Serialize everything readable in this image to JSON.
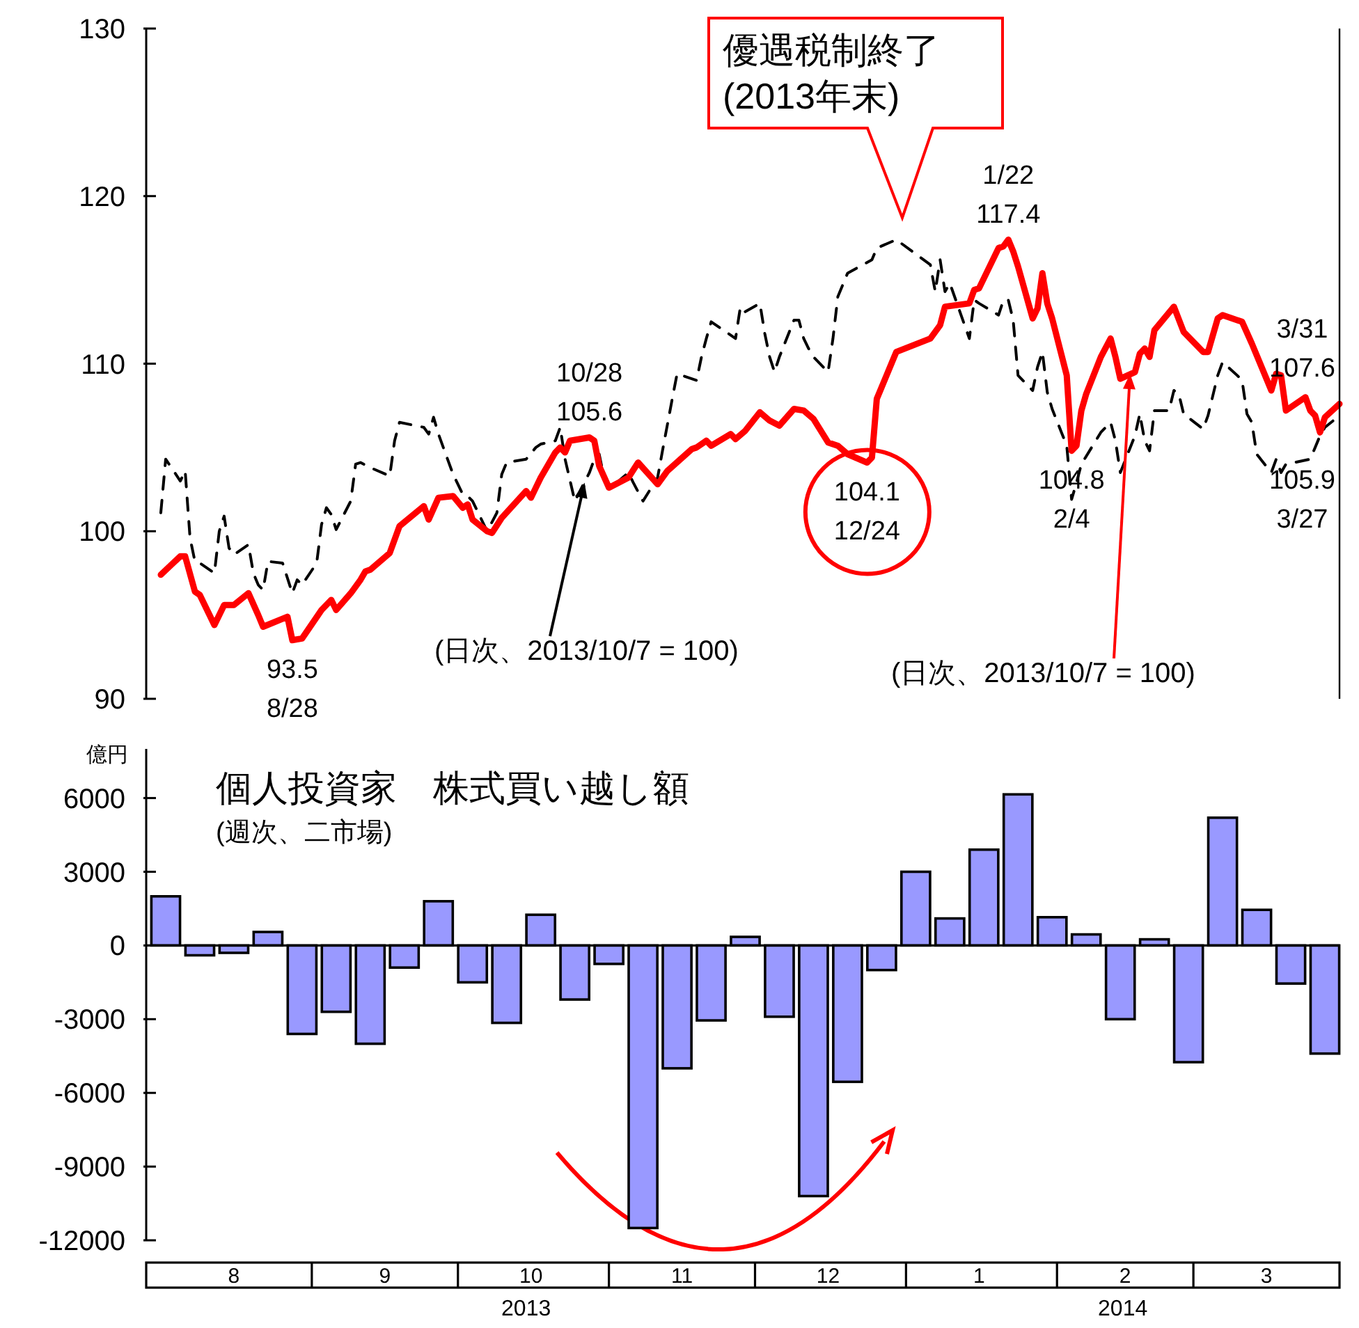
{
  "chart_data": [
    {
      "type": "line",
      "xlim": [
        "2013-07-29",
        "2014-03-31"
      ],
      "ylim": [
        90,
        130
      ],
      "yticks": [
        90,
        100,
        110,
        120,
        130
      ],
      "tick_labels": "y",
      "series": [
        {
          "color": "#000000",
          "line_style": "dashed",
          "x": [
            "2013-08-01",
            "2013-08-02",
            "2013-08-05",
            "2013-08-06",
            "2013-08-07",
            "2013-08-08",
            "2013-08-09",
            "2013-08-12",
            "2013-08-13",
            "2013-08-14",
            "2013-08-15",
            "2013-08-16",
            "2013-08-19",
            "2013-08-20",
            "2013-08-21",
            "2013-08-22",
            "2013-08-23",
            "2013-08-26",
            "2013-08-27",
            "2013-08-28",
            "2013-08-29",
            "2013-08-30",
            "2013-09-02",
            "2013-09-03",
            "2013-09-04",
            "2013-09-05",
            "2013-09-06",
            "2013-09-09",
            "2013-09-10",
            "2013-09-11",
            "2013-09-13",
            "2013-09-17",
            "2013-09-18",
            "2013-09-19",
            "2013-09-24",
            "2013-09-25",
            "2013-09-26",
            "2013-09-27",
            "2013-09-30",
            "2013-10-02",
            "2013-10-03",
            "2013-10-04",
            "2013-10-07",
            "2013-10-09",
            "2013-10-10",
            "2013-10-11",
            "2013-10-15",
            "2013-10-17",
            "2013-10-18",
            "2013-10-21",
            "2013-10-22",
            "2013-10-23",
            "2013-10-25",
            "2013-10-28",
            "2013-10-29",
            "2013-10-30",
            "2013-10-31",
            "2013-11-01",
            "2013-11-05",
            "2013-11-06",
            "2013-11-08",
            "2013-11-11",
            "2013-11-12",
            "2013-11-14",
            "2013-11-15",
            "2013-11-19",
            "2013-11-20",
            "2013-11-21",
            "2013-11-22",
            "2013-11-25",
            "2013-11-27",
            "2013-11-28",
            "2013-11-29",
            "2013-12-02",
            "2013-12-03",
            "2013-12-04",
            "2013-12-05",
            "2013-12-06",
            "2013-12-09",
            "2013-12-10",
            "2013-12-11",
            "2013-12-12",
            "2013-12-13",
            "2013-12-16",
            "2013-12-17",
            "2013-12-18",
            "2013-12-19",
            "2013-12-20",
            "2013-12-25",
            "2013-12-26",
            "2013-12-30",
            "2014-01-06",
            "2014-01-07",
            "2014-01-08",
            "2014-01-09",
            "2014-01-10",
            "2014-01-14",
            "2014-01-15",
            "2014-01-16",
            "2014-01-20",
            "2014-01-21",
            "2014-01-22",
            "2014-01-23",
            "2014-01-24",
            "2014-01-27",
            "2014-01-28",
            "2014-01-29",
            "2014-01-30",
            "2014-01-31",
            "2014-02-03",
            "2014-02-04",
            "2014-02-05",
            "2014-02-06",
            "2014-02-10",
            "2014-02-12",
            "2014-02-13",
            "2014-02-14",
            "2014-02-17",
            "2014-02-18",
            "2014-02-19",
            "2014-02-20",
            "2014-02-21",
            "2014-02-24",
            "2014-02-25",
            "2014-02-26",
            "2014-02-27",
            "2014-03-03",
            "2014-03-04",
            "2014-03-06",
            "2014-03-07",
            "2014-03-10",
            "2014-03-11",
            "2014-03-12",
            "2014-03-13",
            "2014-03-14",
            "2014-03-17",
            "2014-03-18",
            "2014-03-19",
            "2014-03-20",
            "2014-03-25",
            "2014-03-27",
            "2014-03-28",
            "2014-03-31"
          ],
          "values": [
            101.1,
            104.3,
            103.0,
            103.6,
            99.6,
            98.2,
            98.1,
            97.5,
            100.0,
            100.9,
            99.0,
            98.6,
            99.2,
            97.5,
            96.8,
            96.5,
            98.2,
            98.1,
            97.2,
            96.3,
            97.1,
            96.8,
            98.1,
            100.4,
            101.4,
            101.0,
            100.1,
            101.8,
            104.0,
            104.1,
            103.8,
            103.3,
            105.4,
            106.5,
            106.2,
            105.8,
            106.8,
            105.8,
            103.4,
            102.2,
            102.1,
            101.8,
            100,
            101.1,
            103.4,
            104.1,
            104.3,
            105.0,
            105.2,
            105.4,
            106.2,
            104.3,
            101.8,
            103.5,
            104.3,
            104.6,
            103.2,
            102.5,
            103.5,
            102.9,
            101.8,
            103.2,
            104.8,
            107.9,
            109.4,
            109.0,
            110.4,
            111.5,
            112.5,
            111.9,
            111.5,
            113.4,
            113.1,
            113.6,
            111.8,
            110.4,
            109.5,
            110.4,
            112.6,
            112.6,
            111.5,
            110.9,
            110.4,
            109.5,
            111.5,
            114.0,
            114.7,
            115.4,
            116.2,
            116.9,
            117.4,
            115.9,
            114.3,
            116.2,
            114.3,
            114.8,
            111.5,
            113.8,
            113.6,
            112.9,
            113.8,
            113.8,
            112.6,
            109.3,
            108.4,
            109.8,
            110.7,
            108.3,
            107.3,
            105.1,
            101.9,
            102.9,
            104.0,
            105.9,
            106.5,
            105.4,
            103.5,
            105.7,
            107.0,
            105.4,
            104.8,
            107.2,
            107.2,
            108.4,
            108.2,
            107.0,
            106.1,
            106.9,
            109.3,
            110.1,
            109.3,
            109.0,
            107.0,
            106.5,
            104.6,
            103.5,
            104.3,
            103.5,
            104.0,
            104.3,
            105.7,
            106.2,
            106.9
          ]
        },
        {
          "color": "#ff0000",
          "line_style": "solid",
          "x": [
            "2013-08-01",
            "2013-08-05",
            "2013-08-06",
            "2013-08-08",
            "2013-08-09",
            "2013-08-12",
            "2013-08-14",
            "2013-08-16",
            "2013-08-19",
            "2013-08-21",
            "2013-08-22",
            "2013-08-27",
            "2013-08-28",
            "2013-08-30",
            "2013-09-03",
            "2013-09-05",
            "2013-09-06",
            "2013-09-09",
            "2013-09-11",
            "2013-09-12",
            "2013-09-13",
            "2013-09-17",
            "2013-09-19",
            "2013-09-24",
            "2013-09-25",
            "2013-09-27",
            "2013-09-30",
            "2013-10-02",
            "2013-10-03",
            "2013-10-04",
            "2013-10-07",
            "2013-10-08",
            "2013-10-10",
            "2013-10-15",
            "2013-10-16",
            "2013-10-17",
            "2013-10-18",
            "2013-10-21",
            "2013-10-22",
            "2013-10-23",
            "2013-10-24",
            "2013-10-28",
            "2013-10-29",
            "2013-10-30",
            "2013-11-01",
            "2013-11-05",
            "2013-11-07",
            "2013-11-11",
            "2013-11-13",
            "2013-11-18",
            "2013-11-19",
            "2013-11-21",
            "2013-11-22",
            "2013-11-26",
            "2013-11-27",
            "2013-11-29",
            "2013-12-02",
            "2013-12-04",
            "2013-12-06",
            "2013-12-09",
            "2013-12-11",
            "2013-12-13",
            "2013-12-16",
            "2013-12-18",
            "2013-12-20",
            "2013-12-24",
            "2013-12-25",
            "2013-12-26",
            "2013-12-30",
            "2014-01-06",
            "2014-01-08",
            "2014-01-09",
            "2014-01-14",
            "2014-01-15",
            "2014-01-16",
            "2014-01-20",
            "2014-01-21",
            "2014-01-22",
            "2014-01-23",
            "2014-01-24",
            "2014-01-27",
            "2014-01-28",
            "2014-01-29",
            "2014-01-30",
            "2014-01-31",
            "2014-02-03",
            "2014-02-04",
            "2014-02-05",
            "2014-02-06",
            "2014-02-07",
            "2014-02-10",
            "2014-02-12",
            "2014-02-13",
            "2014-02-14",
            "2014-02-17",
            "2014-02-18",
            "2014-02-19",
            "2014-02-20",
            "2014-02-21",
            "2014-02-25",
            "2014-02-27",
            "2014-03-03",
            "2014-03-04",
            "2014-03-06",
            "2014-03-07",
            "2014-03-11",
            "2014-03-13",
            "2014-03-17",
            "2014-03-18",
            "2014-03-19",
            "2014-03-20",
            "2014-03-24",
            "2014-03-25",
            "2014-03-26",
            "2014-03-27",
            "2014-03-28",
            "2014-03-31"
          ],
          "values": [
            97.4,
            98.5,
            98.5,
            96.4,
            96.2,
            94.4,
            95.6,
            95.6,
            96.3,
            95.0,
            94.3,
            94.9,
            93.5,
            93.6,
            95.3,
            95.9,
            95.3,
            96.3,
            97.1,
            97.6,
            97.7,
            98.7,
            100.3,
            101.5,
            100.7,
            102.0,
            102.1,
            101.4,
            101.6,
            100.7,
            100,
            99.9,
            100.8,
            102.4,
            102.0,
            102.6,
            103.2,
            104.7,
            105.0,
            104.7,
            105.4,
            105.6,
            105.4,
            103.9,
            102.6,
            103.2,
            104.1,
            102.8,
            103.6,
            104.9,
            105.0,
            105.4,
            105.1,
            105.8,
            105.5,
            106.0,
            107.1,
            106.6,
            106.3,
            107.3,
            107.2,
            106.7,
            105.3,
            105.1,
            104.6,
            104.1,
            104.4,
            107.9,
            110.7,
            111.5,
            112.3,
            113.4,
            113.6,
            114.4,
            114.5,
            116.9,
            117.0,
            117.4,
            116.7,
            115.8,
            112.7,
            113.3,
            115.4,
            113.6,
            112.7,
            109.3,
            104.8,
            105.1,
            107.2,
            108.2,
            110.4,
            111.5,
            110.4,
            109.1,
            109.5,
            110.6,
            110.9,
            110.4,
            112.0,
            113.4,
            111.9,
            110.7,
            110.7,
            112.7,
            112.9,
            112.5,
            111.2,
            108.4,
            109.4,
            109.3,
            107.2,
            108.0,
            107.2,
            106.9,
            105.9,
            106.8,
            107.6
          ],
          "value_labels": [
            null,
            null,
            null,
            null,
            null,
            null,
            null,
            null,
            null,
            null,
            null,
            null,
            "93.5\n8/28",
            null,
            null,
            null,
            null,
            null,
            null,
            null,
            null,
            null,
            null,
            null,
            null,
            null,
            null,
            null,
            null,
            null,
            null,
            null,
            null,
            null,
            null,
            null,
            null,
            null,
            null,
            null,
            null,
            "10/28\n105.6",
            null,
            null,
            null,
            null,
            null,
            null,
            null,
            null,
            null,
            null,
            null,
            null,
            null,
            null,
            null,
            null,
            null,
            null,
            null,
            null,
            null,
            null,
            null,
            "104.1\n12/24",
            null,
            null,
            null,
            null,
            null,
            null,
            null,
            null,
            null,
            null,
            null,
            "1/22\n117.4",
            null,
            null,
            null,
            null,
            null,
            null,
            null,
            null,
            "104.8\n2/4",
            null,
            null,
            null,
            null,
            null,
            null,
            null,
            null,
            null,
            null,
            null,
            null,
            null,
            null,
            null,
            null,
            null,
            null,
            null,
            null,
            null,
            null,
            null,
            null,
            null,
            null,
            null,
            "105.9\n3/27",
            null,
            "3/31\n107.6"
          ]
        }
      ],
      "annotations": [
        "優遇税制終了\n(2013年末)",
        {
          "text": "(日次、2013/10/7 = 100)",
          "x": "2013-10-27",
          "y": 102.9
        },
        {
          "text": "(日次、2013/10/7 = 100)",
          "x": "2014-02-16",
          "y": 109.4
        }
      ]
    },
    {
      "type": "bar",
      "title": "個人投資家　株式買い越し額",
      "subtitle": "(週次、二市場)",
      "ylabel": "億円",
      "color": "#9999ff",
      "xlim": [
        "2013-07-29",
        "2014-03-31"
      ],
      "xticks": [
        {
          "value": "2013-08-16",
          "label": "8"
        },
        {
          "value": "2013-09-16",
          "label": "9"
        },
        {
          "value": "2013-10-16",
          "label": "10"
        },
        {
          "value": "2013-11-16",
          "label": "11"
        },
        {
          "value": "2013-12-16",
          "label": "12"
        },
        {
          "value": "2014-01-16",
          "label": "1"
        },
        {
          "value": "2014-02-15",
          "label": "2"
        },
        {
          "value": "2014-03-16",
          "label": "3"
        }
      ],
      "ylim": [
        -12000,
        8000
      ],
      "yticks": [
        -12000,
        -9000,
        -6000,
        -3000,
        0,
        3000,
        6000
      ],
      "x": [
        "2013-08-02",
        "2013-08-09",
        "2013-08-16",
        "2013-08-23",
        "2013-08-30",
        "2013-09-06",
        "2013-09-13",
        "2013-09-20",
        "2013-09-27",
        "2013-10-04",
        "2013-10-11",
        "2013-10-18",
        "2013-10-25",
        "2013-11-01",
        "2013-11-08",
        "2013-11-15",
        "2013-11-22",
        "2013-11-29",
        "2013-12-06",
        "2013-12-13",
        "2013-12-20",
        "2013-12-27",
        "2014-01-03",
        "2014-01-10",
        "2014-01-17",
        "2014-01-24",
        "2014-01-31",
        "2014-02-07",
        "2014-02-14",
        "2014-02-21",
        "2014-02-28",
        "2014-03-07",
        "2014-03-14",
        "2014-03-21",
        "2014-03-28"
      ],
      "values": [
        2000,
        -400,
        -300,
        550,
        -3600,
        -2700,
        -4000,
        -900,
        1800,
        -1500,
        -3150,
        1250,
        -2200,
        -750,
        -11500,
        -5000,
        -3050,
        350,
        -2900,
        -10200,
        -5550,
        -1000,
        3000,
        1100,
        3900,
        6150,
        1150,
        450,
        -3000,
        250,
        -4750,
        5200,
        1450,
        -1550,
        -4400
      ],
      "annotations": [
        "2013",
        "2014"
      ]
    }
  ]
}
